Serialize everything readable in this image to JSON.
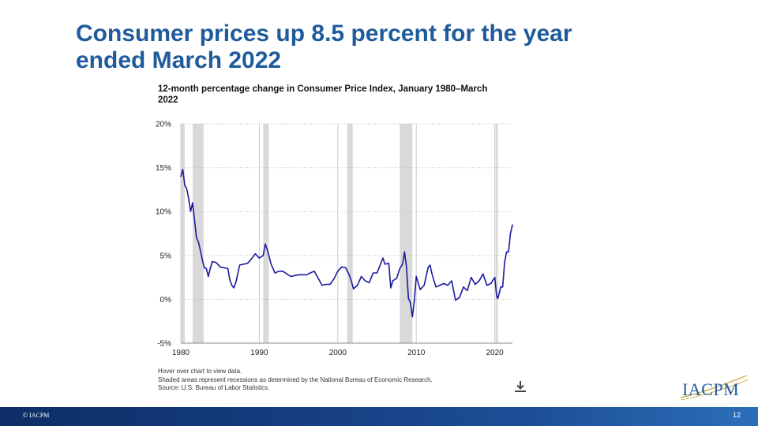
{
  "slide": {
    "title": "Consumer prices up 8.5 percent for the year ended March 2022",
    "page_number": "12",
    "copyright": "© IACPM",
    "logo_text": "IACPM"
  },
  "chart": {
    "title": "12-month percentage change in Consumer Price Index, January 1980–March 2022",
    "notes": [
      "Hover over chart to view data.",
      "Shaded areas represent recessions as determined by the National Bureau of Economic Research.",
      "Source: U.S. Bureau of Labor Statistics."
    ]
  },
  "colors": {
    "title": "#1f5b9b",
    "line": "#1a1a9e",
    "recession": "#d9d9d9",
    "footer": "#163d80"
  },
  "chart_data": {
    "type": "line",
    "title": "12-month percentage change in Consumer Price Index, January 1980–March 2022",
    "xlabel": "",
    "ylabel": "",
    "xlim": [
      1980,
      2022.25
    ],
    "ylim": [
      -5,
      20
    ],
    "x_ticks": [
      1980,
      1990,
      2000,
      2010,
      2020
    ],
    "y_ticks": [
      -5,
      0,
      5,
      10,
      15,
      20
    ],
    "y_tick_labels": [
      "-5%",
      "0%",
      "5%",
      "10%",
      "15%",
      "20%"
    ],
    "grid": "horizontal dotted",
    "recessions": [
      [
        1980.0,
        1980.5
      ],
      [
        1981.5,
        1982.9
      ],
      [
        1990.5,
        1991.2
      ],
      [
        2001.2,
        2001.9
      ],
      [
        2007.9,
        2009.5
      ],
      [
        2020.1,
        2020.4
      ]
    ],
    "series": [
      {
        "x": [
          1980.0,
          1980.25,
          1980.5,
          1980.75,
          1981.0,
          1981.25,
          1981.5,
          1981.75,
          1982.0,
          1982.25,
          1982.5,
          1982.75,
          1983.0,
          1983.25,
          1983.5,
          1983.75,
          1984.0,
          1984.5,
          1985.0,
          1985.5,
          1986.0,
          1986.25,
          1986.5,
          1986.75,
          1987.0,
          1987.5,
          1988.0,
          1988.5,
          1989.0,
          1989.5,
          1990.0,
          1990.5,
          1990.75,
          1991.0,
          1991.25,
          1991.5,
          1992.0,
          1992.5,
          1993.0,
          1994.0,
          1995.0,
          1996.0,
          1996.5,
          1997.0,
          1998.0,
          1998.5,
          1999.0,
          1999.5,
          2000.0,
          2000.5,
          2001.0,
          2001.5,
          2001.75,
          2002.0,
          2002.5,
          2003.0,
          2003.5,
          2004.0,
          2004.5,
          2005.0,
          2005.75,
          2006.0,
          2006.5,
          2006.75,
          2007.0,
          2007.5,
          2007.9,
          2008.25,
          2008.5,
          2008.75,
          2009.0,
          2009.25,
          2009.5,
          2009.75,
          2010.0,
          2010.5,
          2011.0,
          2011.5,
          2011.75,
          2012.0,
          2012.5,
          2013.0,
          2013.5,
          2014.0,
          2014.5,
          2015.0,
          2015.5,
          2016.0,
          2016.5,
          2017.0,
          2017.5,
          2018.0,
          2018.5,
          2019.0,
          2019.5,
          2020.0,
          2020.25,
          2020.4,
          2020.75,
          2021.0,
          2021.25,
          2021.5,
          2021.75,
          2022.0,
          2022.25
        ],
        "values": [
          14.0,
          14.8,
          13.0,
          12.6,
          11.5,
          10.0,
          11.0,
          9.0,
          7.0,
          6.5,
          5.5,
          4.5,
          3.6,
          3.5,
          2.6,
          3.5,
          4.3,
          4.2,
          3.7,
          3.6,
          3.5,
          2.2,
          1.6,
          1.3,
          1.9,
          3.9,
          4.0,
          4.1,
          4.6,
          5.2,
          4.7,
          5.0,
          6.3,
          5.7,
          4.9,
          4.0,
          3.0,
          3.2,
          3.2,
          2.6,
          2.8,
          2.8,
          3.0,
          3.2,
          1.6,
          1.7,
          1.7,
          2.3,
          3.2,
          3.7,
          3.6,
          2.7,
          2.0,
          1.2,
          1.6,
          2.6,
          2.1,
          1.9,
          3.0,
          3.0,
          4.7,
          4.0,
          4.1,
          1.3,
          2.1,
          2.4,
          3.5,
          4.0,
          5.4,
          3.7,
          0.1,
          -0.4,
          -2.0,
          -0.2,
          2.6,
          1.1,
          1.6,
          3.6,
          3.9,
          2.9,
          1.4,
          1.6,
          1.8,
          1.6,
          2.1,
          -0.1,
          0.2,
          1.4,
          1.0,
          2.5,
          1.7,
          2.1,
          2.9,
          1.6,
          1.8,
          2.5,
          0.3,
          0.1,
          1.4,
          1.4,
          4.2,
          5.4,
          5.4,
          7.5,
          8.5
        ]
      }
    ]
  }
}
